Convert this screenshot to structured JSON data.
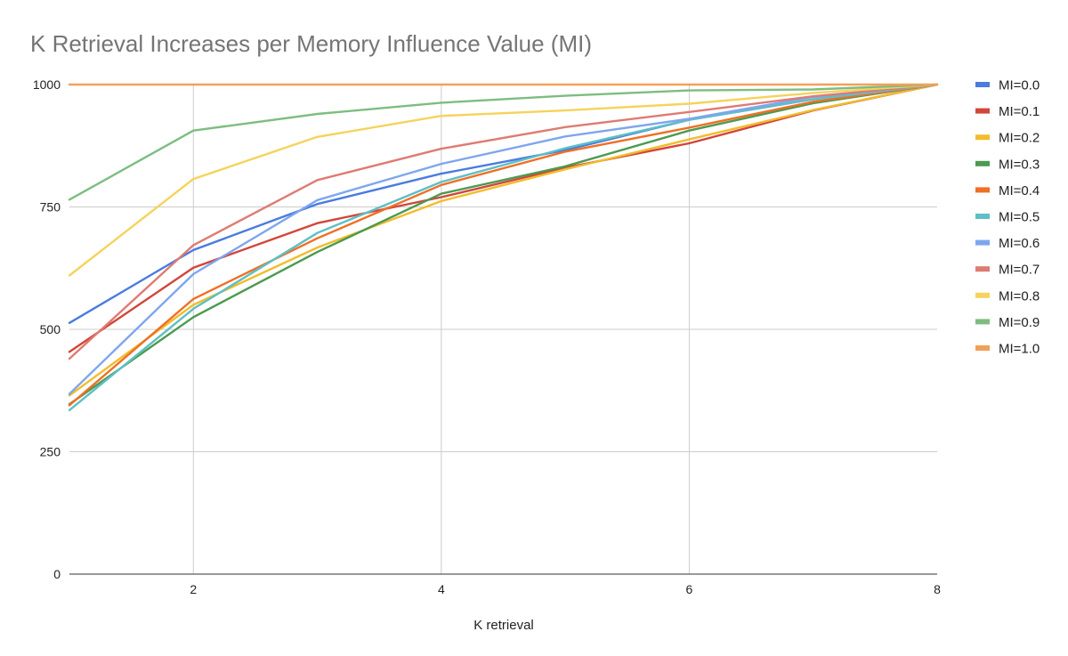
{
  "chart_data": {
    "type": "line",
    "title": "K Retrieval Increases per Memory Influence Value (MI)",
    "xlabel": "K retrieval",
    "ylabel": "",
    "x": [
      1,
      2,
      3,
      4,
      5,
      6,
      7,
      8
    ],
    "xlim": [
      1,
      8
    ],
    "ylim": [
      0,
      1000
    ],
    "x_ticks": [
      "2",
      "4",
      "6",
      "8"
    ],
    "y_ticks": [
      "0",
      "250",
      "500",
      "750",
      "1000"
    ],
    "grid": true,
    "legend_position": "right",
    "series": [
      {
        "name": "MI=0.0",
        "color": "#4a7be0",
        "values": [
          513,
          662,
          756,
          818,
          866,
          928,
          970,
          1000
        ]
      },
      {
        "name": "MI=0.1",
        "color": "#d2463a",
        "values": [
          454,
          626,
          717,
          770,
          830,
          880,
          947,
          1000
        ]
      },
      {
        "name": "MI=0.2",
        "color": "#f2bc2d",
        "values": [
          365,
          550,
          667,
          762,
          827,
          888,
          948,
          1000
        ]
      },
      {
        "name": "MI=0.3",
        "color": "#4b9a4f",
        "values": [
          347,
          525,
          658,
          777,
          833,
          906,
          962,
          1000
        ]
      },
      {
        "name": "MI=0.4",
        "color": "#ef6f25",
        "values": [
          345,
          562,
          686,
          795,
          863,
          912,
          965,
          1000
        ]
      },
      {
        "name": "MI=0.5",
        "color": "#5ebfc4",
        "values": [
          335,
          542,
          697,
          801,
          870,
          928,
          970,
          1000
        ]
      },
      {
        "name": "MI=0.6",
        "color": "#7ea6ee",
        "values": [
          368,
          613,
          764,
          838,
          894,
          930,
          975,
          1000
        ]
      },
      {
        "name": "MI=0.7",
        "color": "#de7b72",
        "values": [
          440,
          672,
          805,
          869,
          913,
          944,
          976,
          1000
        ]
      },
      {
        "name": "MI=0.8",
        "color": "#f5d35c",
        "values": [
          610,
          807,
          893,
          936,
          947,
          961,
          983,
          1000
        ]
      },
      {
        "name": "MI=0.9",
        "color": "#7dbd80",
        "values": [
          765,
          906,
          940,
          963,
          977,
          988,
          990,
          1000
        ]
      },
      {
        "name": "MI=1.0",
        "color": "#f1a05a",
        "values": [
          1000,
          1000,
          1000,
          1000,
          1000,
          1000,
          1000,
          1000
        ]
      }
    ]
  }
}
